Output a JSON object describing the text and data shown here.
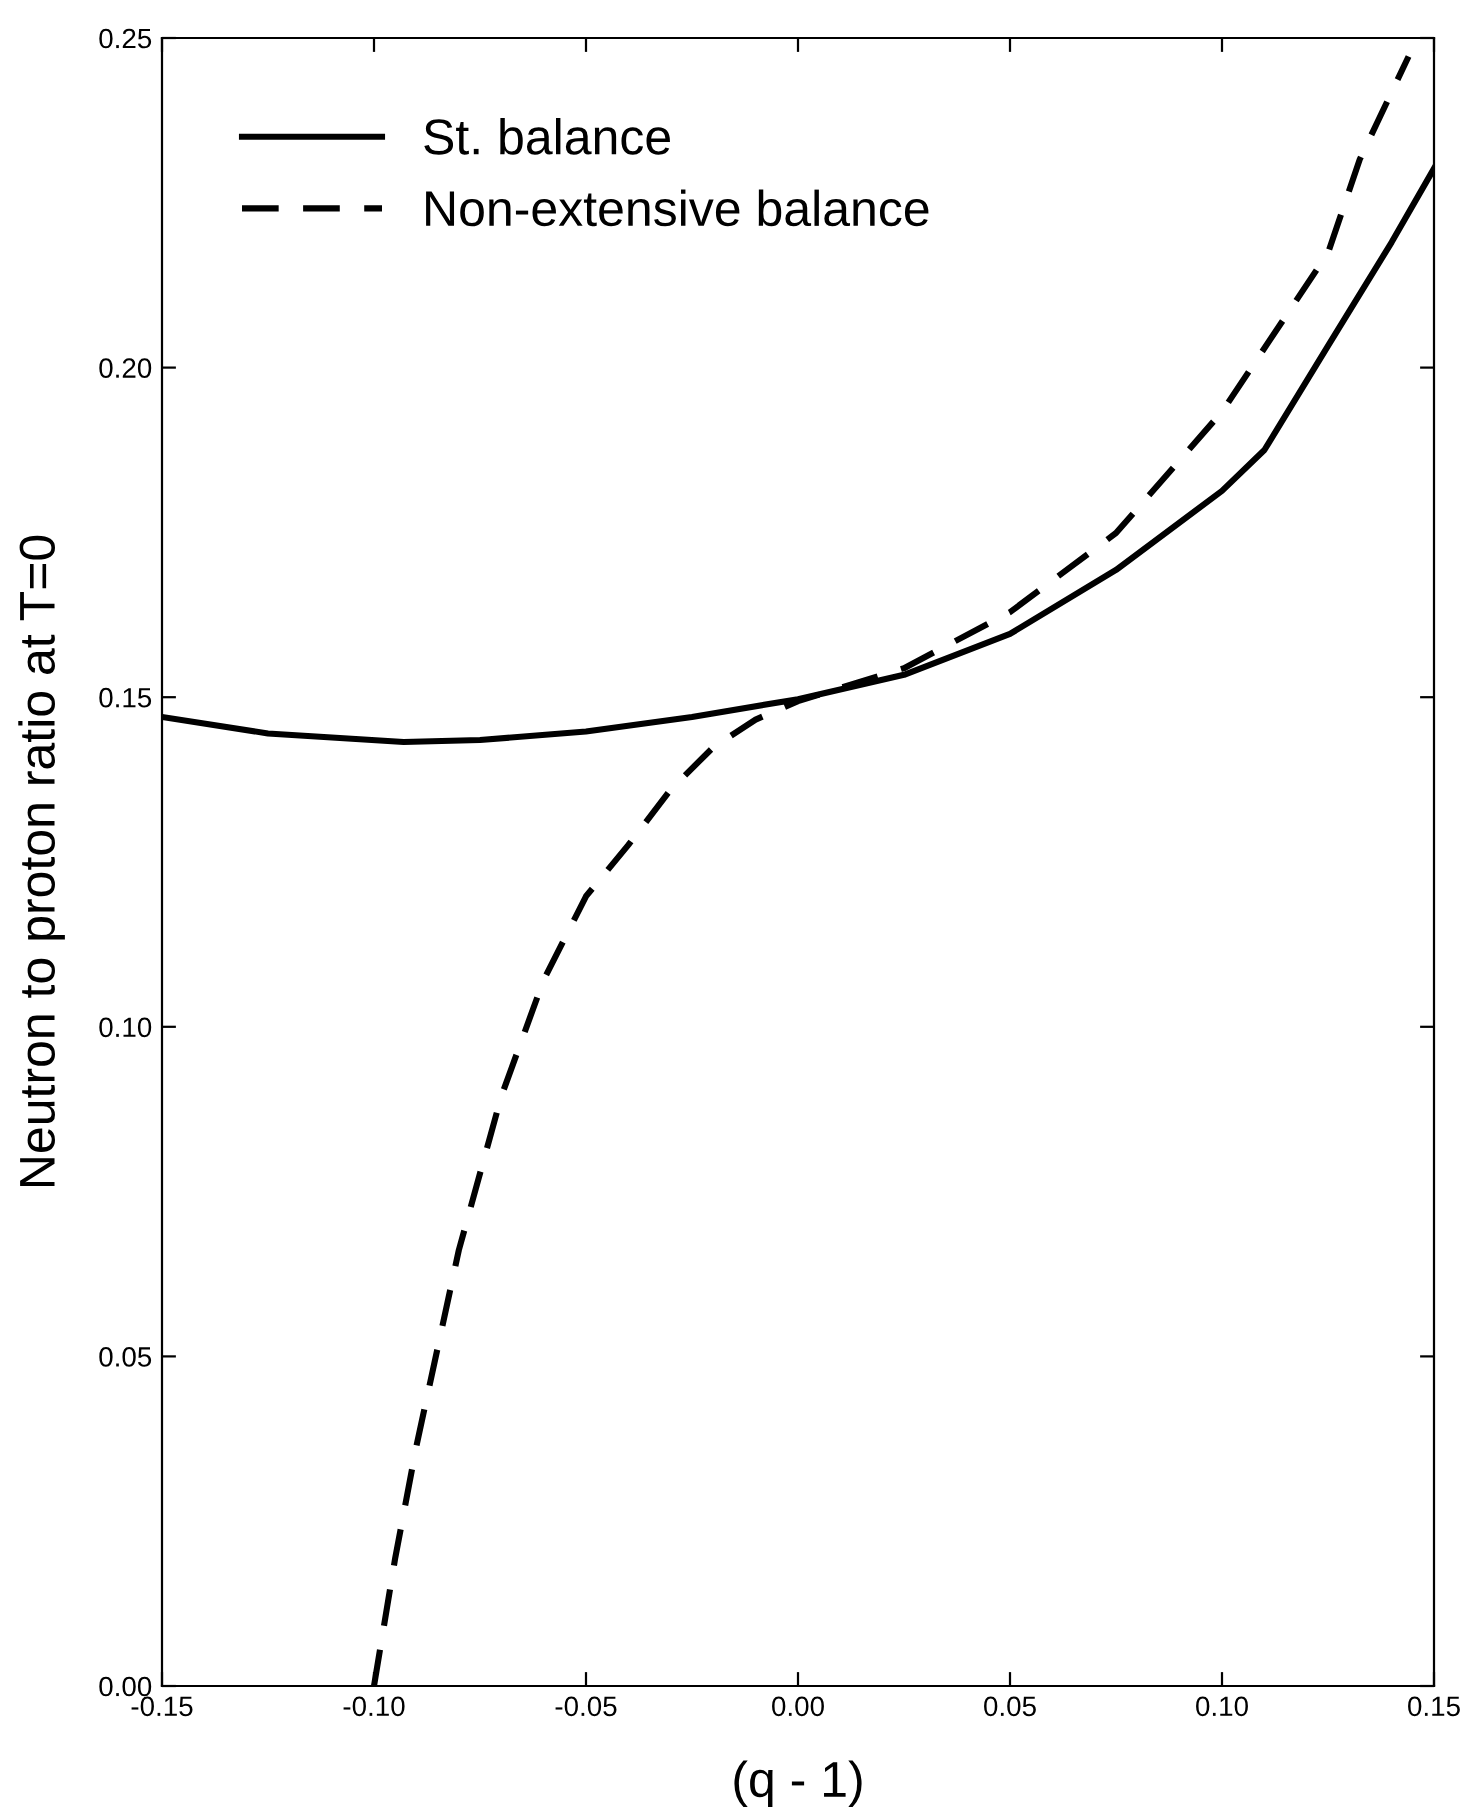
{
  "chart_data": {
    "type": "line",
    "xlabel": "(q - 1)",
    "ylabel": "Neutron to proton ratio at T=0",
    "xlim": [
      -0.15,
      0.15
    ],
    "ylim": [
      0,
      0.25
    ],
    "xticks": [
      {
        "value": -0.15,
        "label": "-0.15"
      },
      {
        "value": -0.1,
        "label": "-0.10"
      },
      {
        "value": -0.05,
        "label": "-0.05"
      },
      {
        "value": 0,
        "label": "0.00"
      },
      {
        "value": 0.05,
        "label": "0.05"
      },
      {
        "value": 0.1,
        "label": "0.10"
      },
      {
        "value": 0.15,
        "label": "0.15"
      }
    ],
    "yticks": [
      {
        "value": 0,
        "label": "0.00"
      },
      {
        "value": 0.05,
        "label": "0.05"
      },
      {
        "value": 0.1,
        "label": "0.10"
      },
      {
        "value": 0.15,
        "label": "0.15"
      },
      {
        "value": 0.2,
        "label": "0.20"
      },
      {
        "value": 0.25,
        "label": "0.25"
      }
    ],
    "grid": false,
    "legend": "top left",
    "marker": "none",
    "series": [
      {
        "name": "St. balance",
        "color": "#000000",
        "line_style": "solid",
        "x": [
          -0.15,
          -0.125,
          -0.093,
          -0.075,
          -0.05,
          -0.025,
          0,
          0.025,
          0.05,
          0.075,
          0.1,
          0.11,
          0.125,
          0.14,
          0.15
        ],
        "values": [
          0.147,
          0.1445,
          0.1432,
          0.1435,
          0.1448,
          0.147,
          0.1497,
          0.1534,
          0.1596,
          0.1693,
          0.1813,
          0.1875,
          0.2033,
          0.219,
          0.2302
        ]
      },
      {
        "name": "Non-extensive balance",
        "color": "#000000",
        "line_style": "dashed",
        "x": [
          -0.1,
          -0.095,
          -0.09,
          -0.08,
          -0.07,
          -0.06,
          -0.05,
          -0.04,
          -0.03,
          -0.02,
          -0.01,
          0,
          0.025,
          0.05,
          0.075,
          0.1,
          0.125,
          0.1325,
          0.144
        ],
        "values": [
          0,
          0.0194,
          0.0364,
          0.0661,
          0.0894,
          0.1071,
          0.1198,
          0.1276,
          0.136,
          0.1424,
          0.1466,
          0.1494,
          0.1544,
          0.1629,
          0.1749,
          0.1933,
          0.2174,
          0.2316,
          0.2472
        ]
      }
    ]
  }
}
